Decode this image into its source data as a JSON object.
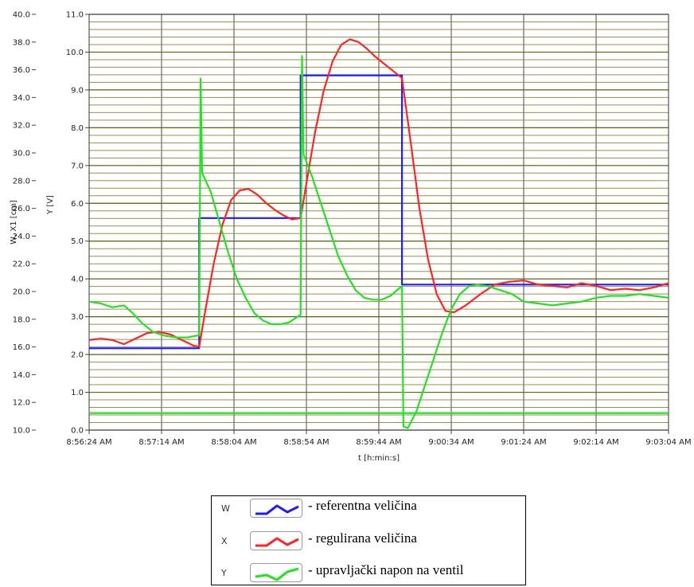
{
  "chart_data": {
    "type": "line",
    "xlabel": "t [h:min:s]",
    "ylabel_left": "W, X1 [cm]",
    "ylabel_right": "Y [V]",
    "x_ticks": [
      "8:56:24 AM",
      "8:57:14 AM",
      "8:58:04 AM",
      "8:58:54 AM",
      "8:59:44 AM",
      "9:00:34 AM",
      "9:01:24 AM",
      "9:02:14 AM",
      "9:03:04 AM"
    ],
    "x_range": [
      "8:56:24 AM",
      "9:03:04 AM"
    ],
    "x_range_seconds": [
      0,
      400
    ],
    "y_left_ticks": [
      "40.0",
      "38.0",
      "36.0",
      "34.0",
      "32.0",
      "30.0",
      "28.0",
      "26.0",
      "24.0",
      "22.0",
      "20.0",
      "18.0",
      "16.0",
      "14.0",
      "12.0",
      "10.0"
    ],
    "y_left_range": [
      10,
      40
    ],
    "y_right_ticks": [
      "11.0",
      "10.0",
      "9.0",
      "8.0",
      "7.0",
      "6.0",
      "5.0",
      "4.0",
      "3.0",
      "2.0",
      "1.0",
      "0.0"
    ],
    "y_right_range": [
      0,
      11
    ],
    "grid": true,
    "series": [
      {
        "name": "W",
        "color": "#1d1dff",
        "axis": "left",
        "points": [
          [
            0,
            15.9
          ],
          [
            76,
            15.9
          ],
          [
            76,
            25.3
          ],
          [
            146,
            25.3
          ],
          [
            146,
            35.6
          ],
          [
            216,
            35.6
          ],
          [
            216,
            20.5
          ],
          [
            400,
            20.5
          ]
        ]
      },
      {
        "name": "X",
        "color": "#ff2424",
        "axis": "left",
        "points": [
          [
            0,
            16.5
          ],
          [
            8,
            16.6
          ],
          [
            16,
            16.5
          ],
          [
            24,
            16.2
          ],
          [
            32,
            16.6
          ],
          [
            40,
            17.0
          ],
          [
            48,
            17.1
          ],
          [
            56,
            16.9
          ],
          [
            64,
            16.5
          ],
          [
            72,
            16.1
          ],
          [
            76,
            16.0
          ],
          [
            80,
            18.5
          ],
          [
            86,
            22.0
          ],
          [
            92,
            24.8
          ],
          [
            98,
            26.6
          ],
          [
            104,
            27.3
          ],
          [
            110,
            27.4
          ],
          [
            116,
            27.0
          ],
          [
            122,
            26.4
          ],
          [
            128,
            25.9
          ],
          [
            134,
            25.5
          ],
          [
            140,
            25.2
          ],
          [
            146,
            25.3
          ],
          [
            150,
            27.8
          ],
          [
            156,
            31.5
          ],
          [
            162,
            34.5
          ],
          [
            168,
            36.6
          ],
          [
            174,
            37.8
          ],
          [
            180,
            38.2
          ],
          [
            186,
            38.0
          ],
          [
            192,
            37.5
          ],
          [
            198,
            36.9
          ],
          [
            204,
            36.4
          ],
          [
            210,
            35.9
          ],
          [
            216,
            35.4
          ],
          [
            222,
            30.8
          ],
          [
            228,
            26.0
          ],
          [
            234,
            22.3
          ],
          [
            240,
            19.8
          ],
          [
            246,
            18.6
          ],
          [
            252,
            18.5
          ],
          [
            260,
            19.0
          ],
          [
            270,
            19.8
          ],
          [
            280,
            20.5
          ],
          [
            290,
            20.7
          ],
          [
            300,
            20.8
          ],
          [
            310,
            20.5
          ],
          [
            320,
            20.4
          ],
          [
            330,
            20.3
          ],
          [
            340,
            20.6
          ],
          [
            350,
            20.4
          ],
          [
            360,
            20.1
          ],
          [
            370,
            20.2
          ],
          [
            380,
            20.1
          ],
          [
            390,
            20.3
          ],
          [
            400,
            20.6
          ]
        ]
      },
      {
        "name": "Y",
        "color": "#22e322",
        "axis": "right",
        "points": [
          [
            0,
            3.4
          ],
          [
            8,
            3.35
          ],
          [
            16,
            3.25
          ],
          [
            24,
            3.3
          ],
          [
            30,
            3.1
          ],
          [
            36,
            2.85
          ],
          [
            44,
            2.6
          ],
          [
            52,
            2.5
          ],
          [
            60,
            2.45
          ],
          [
            68,
            2.45
          ],
          [
            74,
            2.5
          ],
          [
            76,
            2.5
          ],
          [
            77,
            9.3
          ],
          [
            78,
            6.8
          ],
          [
            84,
            6.3
          ],
          [
            90,
            5.5
          ],
          [
            96,
            4.7
          ],
          [
            102,
            4.0
          ],
          [
            108,
            3.5
          ],
          [
            114,
            3.1
          ],
          [
            120,
            2.9
          ],
          [
            126,
            2.8
          ],
          [
            132,
            2.8
          ],
          [
            138,
            2.85
          ],
          [
            144,
            3.0
          ],
          [
            146,
            3.05
          ],
          [
            147,
            9.9
          ],
          [
            148,
            7.3
          ],
          [
            154,
            6.7
          ],
          [
            160,
            6.0
          ],
          [
            166,
            5.3
          ],
          [
            172,
            4.6
          ],
          [
            178,
            4.1
          ],
          [
            184,
            3.7
          ],
          [
            190,
            3.5
          ],
          [
            196,
            3.45
          ],
          [
            202,
            3.45
          ],
          [
            208,
            3.55
          ],
          [
            214,
            3.75
          ],
          [
            216,
            3.8
          ],
          [
            217,
            0.1
          ],
          [
            220,
            0.05
          ],
          [
            226,
            0.5
          ],
          [
            232,
            1.2
          ],
          [
            238,
            1.9
          ],
          [
            244,
            2.6
          ],
          [
            250,
            3.2
          ],
          [
            256,
            3.6
          ],
          [
            262,
            3.8
          ],
          [
            268,
            3.85
          ],
          [
            276,
            3.8
          ],
          [
            284,
            3.7
          ],
          [
            292,
            3.6
          ],
          [
            300,
            3.4
          ],
          [
            310,
            3.35
          ],
          [
            320,
            3.3
          ],
          [
            330,
            3.35
          ],
          [
            340,
            3.4
          ],
          [
            350,
            3.5
          ],
          [
            360,
            3.55
          ],
          [
            370,
            3.55
          ],
          [
            380,
            3.6
          ],
          [
            390,
            3.55
          ],
          [
            400,
            3.5
          ]
        ]
      },
      {
        "name": "",
        "color": "#22e322",
        "axis": "right",
        "points": [
          [
            0,
            0.45
          ],
          [
            400,
            0.45
          ]
        ]
      }
    ]
  },
  "legend": {
    "entries": [
      {
        "key": "W",
        "color": "#1d1dff",
        "text": "- referentna veličina"
      },
      {
        "key": "X",
        "color": "#ff2424",
        "text": "- regulirana veličina"
      },
      {
        "key": "Y",
        "color": "#22e322",
        "text": "- upravljački napon na ventil"
      }
    ]
  }
}
